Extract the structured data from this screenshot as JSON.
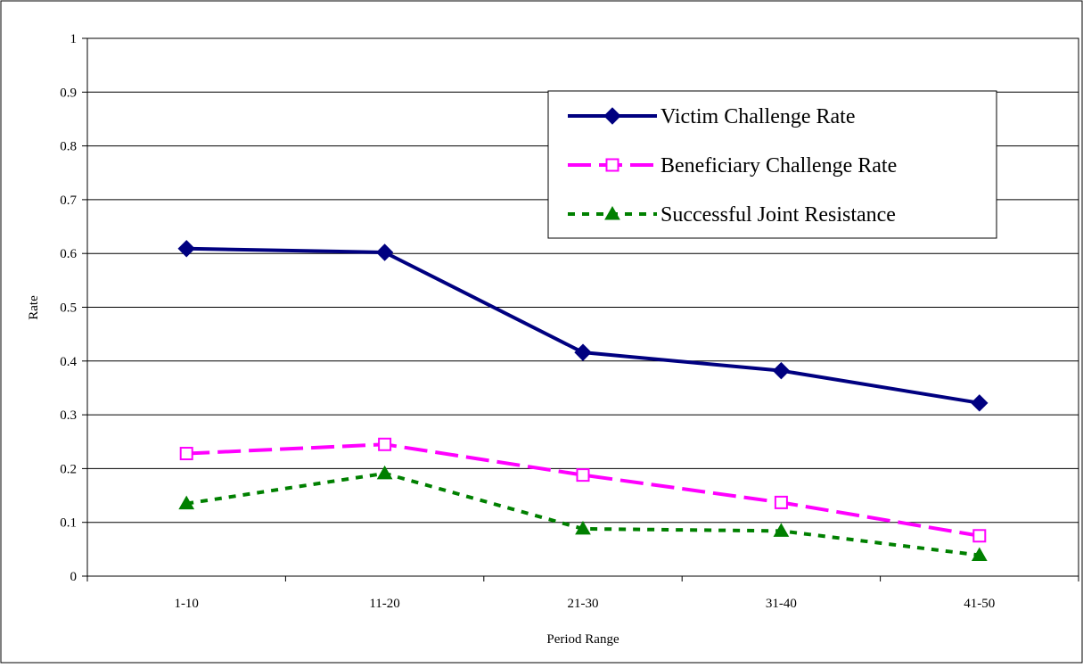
{
  "chart_data": {
    "type": "line",
    "title": "",
    "xlabel": "Period Range",
    "ylabel": "Rate",
    "categories": [
      "1-10",
      "11-20",
      "21-30",
      "31-40",
      "41-50"
    ],
    "ylim": [
      0,
      1
    ],
    "yticks": [
      "0",
      "0.1",
      "0.2",
      "0.3",
      "0.4",
      "0.5",
      "0.6",
      "0.7",
      "0.8",
      "0.9",
      "1"
    ],
    "grid": "horizontal",
    "legend_position": "top-right",
    "series": [
      {
        "name": "Victim Challenge Rate",
        "values": [
          0.609,
          0.602,
          0.416,
          0.382,
          0.322
        ],
        "color": "#000080",
        "line_style": "solid",
        "marker": "diamond"
      },
      {
        "name": "Beneficiary Challenge Rate",
        "values": [
          0.228,
          0.245,
          0.188,
          0.137,
          0.075
        ],
        "color": "#FF00FF",
        "line_style": "dashed",
        "marker": "open-square"
      },
      {
        "name": "Successful Joint Resistance",
        "values": [
          0.135,
          0.191,
          0.088,
          0.084,
          0.039
        ],
        "color": "#008000",
        "line_style": "dotted",
        "marker": "triangle"
      }
    ]
  }
}
